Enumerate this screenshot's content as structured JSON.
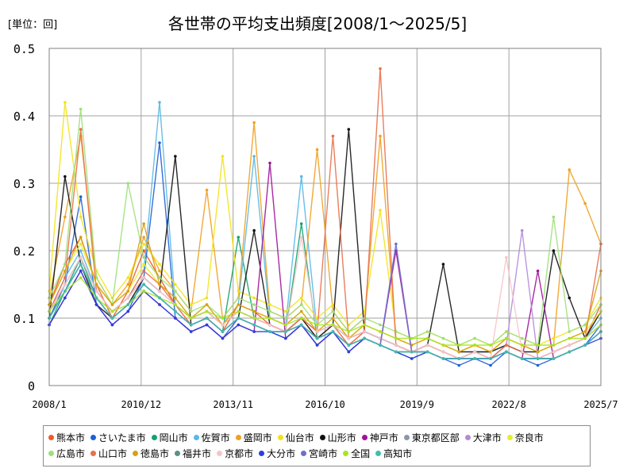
{
  "unit_label": "[単位：回]",
  "chart_data": {
    "type": "line",
    "title": "各世帯の平均支出頻度[2008/1～2025/5]",
    "ylim": [
      0,
      0.5
    ],
    "yticks": [
      "0",
      "0.1",
      "0.2",
      "0.3",
      "0.4",
      "0.5"
    ],
    "ytick_values": [
      0,
      0.1,
      0.2,
      0.3,
      0.4,
      0.5
    ],
    "xticks": [
      "2008/1",
      "2010/12",
      "2013/11",
      "2016/10",
      "2019/9",
      "2022/8",
      "2025/7"
    ],
    "grid": true,
    "legend_position": "bottom",
    "series": [
      {
        "name": "熊本市",
        "color": "#f05a28",
        "values": [
          0.12,
          0.18,
          0.22,
          0.15,
          0.1,
          0.14,
          0.2,
          0.16,
          0.12,
          0.09,
          0.1,
          0.08,
          0.12,
          0.11,
          0.09,
          0.08,
          0.1,
          0.07,
          0.09,
          0.06,
          0.08,
          0.07,
          0.06,
          0.05,
          0.06,
          0.05,
          0.04,
          0.05,
          0.04,
          0.06,
          0.05,
          0.04,
          0.05,
          0.06,
          0.07,
          0.12
        ]
      },
      {
        "name": "さいたま市",
        "color": "#1f5fd6",
        "values": [
          0.1,
          0.15,
          0.28,
          0.12,
          0.09,
          0.11,
          0.16,
          0.36,
          0.1,
          0.08,
          0.09,
          0.07,
          0.1,
          0.09,
          0.08,
          0.07,
          0.09,
          0.06,
          0.08,
          0.05,
          0.07,
          0.06,
          0.05,
          0.04,
          0.05,
          0.04,
          0.03,
          0.04,
          0.03,
          0.05,
          0.04,
          0.03,
          0.04,
          0.05,
          0.06,
          0.09
        ]
      },
      {
        "name": "岡山市",
        "color": "#12a36f",
        "values": [
          0.09,
          0.14,
          0.19,
          0.13,
          0.1,
          0.12,
          0.15,
          0.13,
          0.11,
          0.09,
          0.1,
          0.08,
          0.22,
          0.1,
          0.09,
          0.08,
          0.24,
          0.07,
          0.08,
          0.06,
          0.07,
          0.06,
          0.05,
          0.05,
          0.05,
          0.04,
          0.04,
          0.04,
          0.04,
          0.05,
          0.04,
          0.04,
          0.04,
          0.05,
          0.06,
          0.08
        ]
      },
      {
        "name": "佐賀市",
        "color": "#58b8e6",
        "values": [
          0.11,
          0.16,
          0.2,
          0.14,
          0.11,
          0.13,
          0.17,
          0.42,
          0.12,
          0.1,
          0.11,
          0.09,
          0.12,
          0.34,
          0.1,
          0.09,
          0.31,
          0.08,
          0.09,
          0.07,
          0.08,
          0.07,
          0.06,
          0.05,
          0.06,
          0.05,
          0.04,
          0.05,
          0.05,
          0.06,
          0.05,
          0.04,
          0.05,
          0.06,
          0.07,
          0.1
        ]
      },
      {
        "name": "盛岡市",
        "color": "#f0a020",
        "values": [
          0.13,
          0.25,
          0.37,
          0.16,
          0.12,
          0.15,
          0.22,
          0.17,
          0.14,
          0.11,
          0.29,
          0.1,
          0.13,
          0.39,
          0.11,
          0.1,
          0.12,
          0.35,
          0.11,
          0.08,
          0.1,
          0.37,
          0.07,
          0.06,
          0.07,
          0.06,
          0.05,
          0.06,
          0.05,
          0.07,
          0.06,
          0.05,
          0.06,
          0.32,
          0.27,
          0.21
        ]
      },
      {
        "name": "仙台市",
        "color": "#f2e31a",
        "values": [
          0.14,
          0.42,
          0.25,
          0.17,
          0.13,
          0.16,
          0.21,
          0.18,
          0.15,
          0.12,
          0.13,
          0.34,
          0.14,
          0.13,
          0.12,
          0.11,
          0.13,
          0.1,
          0.12,
          0.09,
          0.11,
          0.26,
          0.08,
          0.07,
          0.08,
          0.07,
          0.06,
          0.07,
          0.06,
          0.08,
          0.07,
          0.06,
          0.07,
          0.08,
          0.09,
          0.13
        ]
      },
      {
        "name": "山形市",
        "color": "#111111",
        "values": [
          0.1,
          0.31,
          0.18,
          0.12,
          0.1,
          0.12,
          0.16,
          0.14,
          0.34,
          0.09,
          0.1,
          0.08,
          0.1,
          0.23,
          0.09,
          0.08,
          0.1,
          0.07,
          0.09,
          0.38,
          0.08,
          0.07,
          0.06,
          0.05,
          0.06,
          0.18,
          0.05,
          0.05,
          0.05,
          0.06,
          0.05,
          0.05,
          0.2,
          0.13,
          0.07,
          0.11
        ]
      },
      {
        "name": "神戸市",
        "color": "#a0139a",
        "values": [
          0.09,
          0.13,
          0.17,
          0.12,
          0.09,
          0.11,
          0.14,
          0.12,
          0.1,
          0.08,
          0.09,
          0.07,
          0.09,
          0.08,
          0.33,
          0.07,
          0.09,
          0.06,
          0.08,
          0.05,
          0.07,
          0.06,
          0.2,
          0.05,
          0.05,
          0.04,
          0.04,
          0.04,
          0.04,
          0.05,
          0.04,
          0.17,
          0.04,
          0.05,
          0.06,
          0.08
        ]
      },
      {
        "name": "東京都区部",
        "color": "#8a98a8",
        "values": [
          0.1,
          0.14,
          0.18,
          0.13,
          0.1,
          0.12,
          0.15,
          0.13,
          0.11,
          0.09,
          0.1,
          0.08,
          0.1,
          0.09,
          0.08,
          0.08,
          0.09,
          0.07,
          0.08,
          0.06,
          0.07,
          0.06,
          0.05,
          0.05,
          0.05,
          0.04,
          0.04,
          0.04,
          0.04,
          0.05,
          0.04,
          0.04,
          0.04,
          0.05,
          0.06,
          0.08
        ]
      },
      {
        "name": "大津市",
        "color": "#b58ad8",
        "values": [
          0.11,
          0.15,
          0.19,
          0.14,
          0.11,
          0.13,
          0.16,
          0.14,
          0.12,
          0.1,
          0.11,
          0.09,
          0.11,
          0.1,
          0.09,
          0.08,
          0.1,
          0.08,
          0.09,
          0.07,
          0.08,
          0.07,
          0.06,
          0.05,
          0.06,
          0.05,
          0.04,
          0.05,
          0.04,
          0.06,
          0.23,
          0.04,
          0.05,
          0.06,
          0.07,
          0.09
        ]
      },
      {
        "name": "奈良市",
        "color": "#e3ef2a",
        "values": [
          0.12,
          0.17,
          0.21,
          0.15,
          0.12,
          0.14,
          0.18,
          0.15,
          0.13,
          0.1,
          0.12,
          0.09,
          0.12,
          0.11,
          0.1,
          0.09,
          0.11,
          0.08,
          0.1,
          0.07,
          0.09,
          0.08,
          0.07,
          0.06,
          0.07,
          0.06,
          0.05,
          0.06,
          0.05,
          0.07,
          0.06,
          0.05,
          0.06,
          0.07,
          0.08,
          0.11
        ]
      },
      {
        "name": "広島市",
        "color": "#9ee07a",
        "values": [
          0.13,
          0.18,
          0.41,
          0.16,
          0.12,
          0.3,
          0.19,
          0.16,
          0.14,
          0.11,
          0.12,
          0.1,
          0.13,
          0.12,
          0.11,
          0.1,
          0.12,
          0.09,
          0.11,
          0.08,
          0.1,
          0.09,
          0.08,
          0.07,
          0.08,
          0.07,
          0.06,
          0.07,
          0.06,
          0.08,
          0.07,
          0.06,
          0.25,
          0.08,
          0.09,
          0.12
        ]
      },
      {
        "name": "山口市",
        "color": "#e8704a",
        "values": [
          0.11,
          0.16,
          0.38,
          0.14,
          0.11,
          0.13,
          0.17,
          0.15,
          0.12,
          0.1,
          0.11,
          0.09,
          0.11,
          0.1,
          0.09,
          0.08,
          0.1,
          0.08,
          0.37,
          0.07,
          0.08,
          0.47,
          0.06,
          0.05,
          0.06,
          0.05,
          0.04,
          0.05,
          0.04,
          0.06,
          0.05,
          0.04,
          0.05,
          0.06,
          0.07,
          0.21
        ]
      },
      {
        "name": "徳島市",
        "color": "#d9a012",
        "values": [
          0.12,
          0.17,
          0.22,
          0.15,
          0.12,
          0.14,
          0.24,
          0.15,
          0.13,
          0.1,
          0.12,
          0.09,
          0.12,
          0.11,
          0.1,
          0.09,
          0.11,
          0.08,
          0.1,
          0.07,
          0.09,
          0.08,
          0.07,
          0.06,
          0.07,
          0.06,
          0.05,
          0.06,
          0.05,
          0.07,
          0.06,
          0.05,
          0.06,
          0.07,
          0.08,
          0.17
        ]
      },
      {
        "name": "福井市",
        "color": "#5f8f8a",
        "values": [
          0.1,
          0.14,
          0.18,
          0.13,
          0.1,
          0.12,
          0.15,
          0.13,
          0.11,
          0.09,
          0.1,
          0.08,
          0.1,
          0.09,
          0.08,
          0.08,
          0.09,
          0.07,
          0.08,
          0.06,
          0.07,
          0.06,
          0.05,
          0.05,
          0.05,
          0.04,
          0.04,
          0.04,
          0.04,
          0.05,
          0.04,
          0.04,
          0.04,
          0.05,
          0.06,
          0.08
        ]
      },
      {
        "name": "京都市",
        "color": "#f7c4c8",
        "values": [
          0.11,
          0.15,
          0.19,
          0.14,
          0.11,
          0.13,
          0.16,
          0.14,
          0.12,
          0.1,
          0.11,
          0.09,
          0.11,
          0.1,
          0.09,
          0.08,
          0.22,
          0.08,
          0.09,
          0.07,
          0.08,
          0.07,
          0.06,
          0.05,
          0.06,
          0.05,
          0.04,
          0.05,
          0.04,
          0.19,
          0.05,
          0.04,
          0.05,
          0.06,
          0.07,
          0.09
        ]
      },
      {
        "name": "大分市",
        "color": "#2a3fe0",
        "values": [
          0.09,
          0.13,
          0.17,
          0.12,
          0.09,
          0.11,
          0.14,
          0.12,
          0.1,
          0.08,
          0.09,
          0.07,
          0.09,
          0.08,
          0.08,
          0.07,
          0.09,
          0.06,
          0.08,
          0.05,
          0.07,
          0.06,
          0.05,
          0.04,
          0.05,
          0.04,
          0.04,
          0.04,
          0.04,
          0.05,
          0.04,
          0.04,
          0.04,
          0.05,
          0.06,
          0.07
        ]
      },
      {
        "name": "宮崎市",
        "color": "#6b6fd0",
        "values": [
          0.1,
          0.14,
          0.18,
          0.13,
          0.1,
          0.12,
          0.15,
          0.13,
          0.11,
          0.09,
          0.1,
          0.08,
          0.1,
          0.09,
          0.08,
          0.08,
          0.09,
          0.07,
          0.08,
          0.06,
          0.07,
          0.06,
          0.21,
          0.05,
          0.05,
          0.04,
          0.04,
          0.04,
          0.04,
          0.05,
          0.04,
          0.04,
          0.04,
          0.05,
          0.06,
          0.08
        ]
      },
      {
        "name": "全国",
        "color": "#a6e61f",
        "values": [
          0.11,
          0.14,
          0.16,
          0.13,
          0.11,
          0.12,
          0.14,
          0.13,
          0.12,
          0.1,
          0.11,
          0.1,
          0.11,
          0.1,
          0.1,
          0.09,
          0.1,
          0.09,
          0.09,
          0.08,
          0.09,
          0.08,
          0.07,
          0.07,
          0.07,
          0.06,
          0.06,
          0.06,
          0.06,
          0.07,
          0.06,
          0.06,
          0.06,
          0.07,
          0.07,
          0.09
        ]
      },
      {
        "name": "高知市",
        "color": "#3fbfa8",
        "values": [
          0.1,
          0.14,
          0.18,
          0.13,
          0.1,
          0.12,
          0.15,
          0.13,
          0.11,
          0.09,
          0.1,
          0.08,
          0.1,
          0.09,
          0.08,
          0.08,
          0.09,
          0.07,
          0.08,
          0.06,
          0.07,
          0.06,
          0.05,
          0.05,
          0.05,
          0.04,
          0.04,
          0.04,
          0.04,
          0.05,
          0.04,
          0.04,
          0.04,
          0.05,
          0.06,
          0.08
        ]
      }
    ]
  }
}
